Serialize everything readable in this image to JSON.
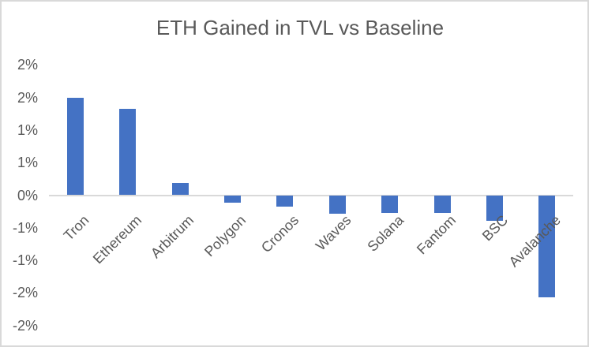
{
  "window": {
    "background": "#FFFFFF",
    "border_color": "#D9D9D9"
  },
  "chart_data": {
    "type": "bar",
    "title": "ETH Gained in TVL vs Baseline",
    "categories": [
      "Tron",
      "Ethereum",
      "Arbitrum",
      "Polygon",
      "Cronos",
      "Waves",
      "Solana",
      "Fantom",
      "BSC",
      "Avalanche"
    ],
    "values": [
      1.49,
      1.33,
      0.19,
      -0.12,
      -0.17,
      -0.29,
      -0.27,
      -0.27,
      -0.39,
      -1.57
    ],
    "value_unit": "percent",
    "xlabel": "",
    "ylabel": "",
    "ylim": [
      -2,
      2
    ],
    "ytick_step": 0.5,
    "ytick_labels_top_to_bottom": [
      "2%",
      "2%",
      "1%",
      "1%",
      "0%",
      "-1%",
      "-1%",
      "-2%",
      "-2%"
    ],
    "ytick_number_format": "rounded whole percent",
    "grid": "zero-line-only",
    "legend": "none",
    "category_label_rotation_deg": -45,
    "bar_color": "#4472C4",
    "axis_line_color": "#D9D9D9",
    "text_color": "#595959"
  }
}
